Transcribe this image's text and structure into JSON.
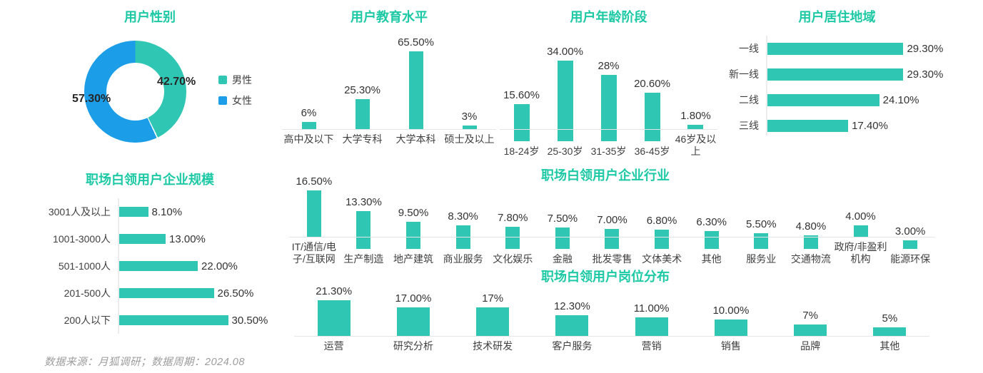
{
  "page": {
    "footer": "数据来源：月狐调研；数据周期：2024.08"
  },
  "colors": {
    "teal": "#2fc7b4",
    "blue": "#1b9de8",
    "title": "#1dc9a5",
    "text_dark": "#333333",
    "text_gray": "#9c9c9c",
    "axis": "#e5e5e5"
  },
  "chart_data": [
    {
      "id": "gender",
      "type": "pie",
      "donut": true,
      "title": "用户性别",
      "labels": [
        "男性",
        "女性"
      ],
      "values": [
        42.7,
        57.3
      ],
      "display_values": [
        "42.70%",
        "57.30%"
      ],
      "slice_colors": [
        "#2fc7b4",
        "#1b9de8"
      ],
      "legend_position": "right"
    },
    {
      "id": "education",
      "type": "bar",
      "title": "用户教育水平",
      "categories": [
        "高中及以下",
        "大学专科",
        "大学本科",
        "硕士及以上"
      ],
      "values": [
        6,
        25.3,
        65.5,
        3
      ],
      "display_values": [
        "6%",
        "25.30%",
        "65.50%",
        "3%"
      ],
      "ylabel": "",
      "xlabel": "",
      "grid": false
    },
    {
      "id": "age",
      "type": "bar",
      "title": "用户年龄阶段",
      "categories": [
        "18-24岁",
        "25-30岁",
        "31-35岁",
        "36-45岁",
        "46岁及以上"
      ],
      "values": [
        15.6,
        34,
        28,
        20.6,
        1.8
      ],
      "display_values": [
        "15.60%",
        "34.00%",
        "28%",
        "20.60%",
        "1.80%"
      ],
      "ylabel": "",
      "xlabel": "",
      "grid": false
    },
    {
      "id": "region",
      "type": "bar-horizontal",
      "title": "用户居住地域",
      "categories": [
        "一线",
        "新一线",
        "二线",
        "三线"
      ],
      "values": [
        29.3,
        29.3,
        24.1,
        17.4
      ],
      "display_values": [
        "29.30%",
        "29.30%",
        "24.10%",
        "17.40%"
      ],
      "ylabel": "",
      "xlabel": "",
      "grid": false
    },
    {
      "id": "company-size",
      "type": "bar-horizontal",
      "title": "职场白领用户企业规模",
      "categories": [
        "3001人及以上",
        "1001-3000人",
        "501-1000人",
        "201-500人",
        "200人以下"
      ],
      "values": [
        8.1,
        13,
        22,
        26.5,
        30.5
      ],
      "display_values": [
        "8.10%",
        "13.00%",
        "22.00%",
        "26.50%",
        "30.50%"
      ],
      "ylabel": "",
      "xlabel": "",
      "grid": false
    },
    {
      "id": "industry",
      "type": "bar",
      "title": "职场白领用户企业行业",
      "categories": [
        "IT/通信/电子/互联网",
        "生产制造",
        "地产建筑",
        "商业服务",
        "文化娱乐",
        "金融",
        "批发零售",
        "文体美术",
        "其他",
        "服务业",
        "交通物流",
        "政府/非盈利机构",
        "能源环保"
      ],
      "values": [
        16.5,
        13.3,
        9.5,
        8.3,
        7.8,
        7.5,
        7,
        6.8,
        6.3,
        5.5,
        4.8,
        4,
        3
      ],
      "display_values": [
        "16.50%",
        "13.30%",
        "9.50%",
        "8.30%",
        "7.80%",
        "7.50%",
        "7.00%",
        "6.80%",
        "6.30%",
        "5.50%",
        "4.80%",
        "4.00%",
        "3.00%"
      ],
      "ylabel": "",
      "xlabel": "",
      "grid": false
    },
    {
      "id": "job",
      "type": "bar",
      "title": "职场白领用户岗位分布",
      "categories": [
        "运营",
        "研究分析",
        "技术研发",
        "客户服务",
        "营销",
        "销售",
        "品牌",
        "其他"
      ],
      "values": [
        21.3,
        17,
        17,
        12.3,
        11,
        10,
        7,
        5
      ],
      "display_values": [
        "21.30%",
        "17.00%",
        "17%",
        "12.30%",
        "11.00%",
        "10.00%",
        "7%",
        "5%"
      ],
      "ylabel": "",
      "xlabel": "",
      "grid": false
    }
  ]
}
